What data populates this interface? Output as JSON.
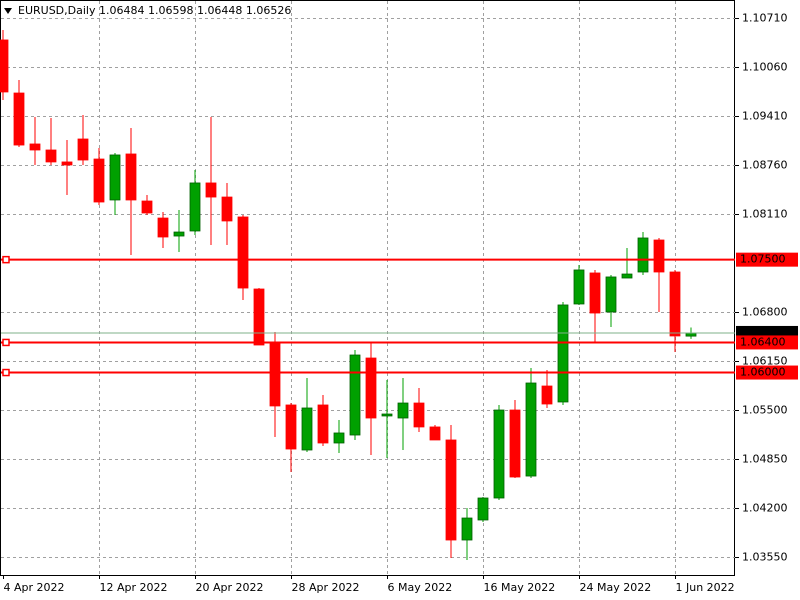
{
  "chart_data": {
    "type": "candlestick",
    "title": "EURUSD,Daily  1.06484 1.06598 1.06448 1.06526",
    "categories": [
      "4 Apr 2022",
      null,
      null,
      null,
      null,
      null,
      "12 Apr 2022",
      null,
      null,
      null,
      null,
      null,
      "20 Apr 2022",
      null,
      null,
      null,
      null,
      null,
      "28 Apr 2022",
      null,
      null,
      null,
      null,
      null,
      "6 May 2022",
      null,
      null,
      null,
      null,
      null,
      "16 May 2022",
      null,
      null,
      null,
      null,
      null,
      "24 May 2022",
      null,
      null,
      null,
      null,
      null,
      "1 Jun 2022",
      null
    ],
    "series": [
      {
        "name": "EURUSD",
        "up_color": "#00a000",
        "down_color": "#ff0000",
        "open": [
          1.10419,
          1.09714,
          1.09037,
          1.08957,
          1.08798,
          1.09103,
          1.08837,
          1.08293,
          1.08904,
          1.08279,
          1.08053,
          1.07814,
          1.07881,
          1.08519,
          1.08332,
          1.08067,
          1.0711,
          1.06393,
          1.05569,
          1.04971,
          1.05569,
          1.05064,
          1.0517,
          1.06193,
          1.05423,
          1.05396,
          1.05595,
          1.05277,
          1.05104,
          1.03775,
          1.04041,
          1.04333,
          1.05502,
          1.04625,
          1.05821,
          1.05609,
          1.06911,
          1.07323,
          1.06805,
          1.07256,
          1.07336,
          1.07761,
          1.07336,
          1.06484
        ],
        "high": [
          1.10551,
          1.09887,
          1.09395,
          1.09382,
          1.0909,
          1.09422,
          1.08984,
          1.08917,
          1.09249,
          1.08359,
          1.08133,
          1.0816,
          1.08691,
          1.09395,
          1.08519,
          1.08093,
          1.07123,
          1.06539,
          1.05595,
          1.05928,
          1.05702,
          1.0537,
          1.063,
          1.06406,
          1.05901,
          1.05928,
          1.05795,
          1.05303,
          1.05303,
          1.042,
          1.04346,
          1.05569,
          1.05635,
          1.0606,
          1.06034,
          1.06937,
          1.07429,
          1.07363,
          1.07296,
          1.07655,
          1.07867,
          1.07788,
          1.07363,
          1.06598
        ],
        "low": [
          1.09621,
          1.08997,
          1.08758,
          1.08758,
          1.08359,
          1.08758,
          1.08226,
          1.08093,
          1.07562,
          1.08093,
          1.07655,
          1.07602,
          1.07828,
          1.07695,
          1.07695,
          1.06964,
          1.06366,
          1.05144,
          1.04679,
          1.04944,
          1.05024,
          1.04931,
          1.05104,
          1.04904,
          1.04865,
          1.04971,
          1.0521,
          1.05104,
          1.03536,
          1.03509,
          1.04014,
          1.04307,
          1.04599,
          1.04599,
          1.05529,
          1.05569,
          1.06898,
          1.06406,
          1.06605,
          1.07256,
          1.07296,
          1.06805,
          1.06273,
          1.06448
        ],
        "close": [
          1.09728,
          1.09023,
          1.08957,
          1.08798,
          1.08758,
          1.08824,
          1.08266,
          1.08891,
          1.08293,
          1.0812,
          1.07801,
          1.07867,
          1.08519,
          1.08332,
          1.08014,
          1.07123,
          1.06366,
          1.05556,
          1.04984,
          1.05529,
          1.05064,
          1.05197,
          1.06233,
          1.05396,
          1.05449,
          1.05595,
          1.05277,
          1.05104,
          1.03775,
          1.04067,
          1.04333,
          1.05502,
          1.04612,
          1.05861,
          1.05582,
          1.06898,
          1.07363,
          1.06791,
          1.0727,
          1.07309,
          1.07788,
          1.07336,
          1.06486,
          1.06526
        ]
      }
    ],
    "ylim": [
      1.0331,
      1.1095
    ],
    "yticks": [
      {
        "value": 1.1071,
        "label": "1.10710"
      },
      {
        "value": 1.1006,
        "label": "1.10060"
      },
      {
        "value": 1.0941,
        "label": "1.09410"
      },
      {
        "value": 1.0876,
        "label": "1.08760"
      },
      {
        "value": 1.0811,
        "label": "1.08110"
      },
      {
        "value": 1.068,
        "label": "1.06800"
      },
      {
        "value": 1.0615,
        "label": "1.06150"
      },
      {
        "value": 1.055,
        "label": "1.05500"
      },
      {
        "value": 1.0485,
        "label": "1.04850"
      },
      {
        "value": 1.042,
        "label": "1.04200"
      },
      {
        "value": 1.0355,
        "label": "1.03550"
      }
    ],
    "hlines": [
      {
        "value": 1.075,
        "label": "1.07500"
      },
      {
        "value": 1.064,
        "label": "1.06400"
      },
      {
        "value": 1.06,
        "label": "1.06000"
      }
    ],
    "hline_color": "#ff0000",
    "last_price": {
      "value": 1.06526,
      "label": "1.06526"
    },
    "last_price_color": "#7fb08a",
    "grid": true
  }
}
